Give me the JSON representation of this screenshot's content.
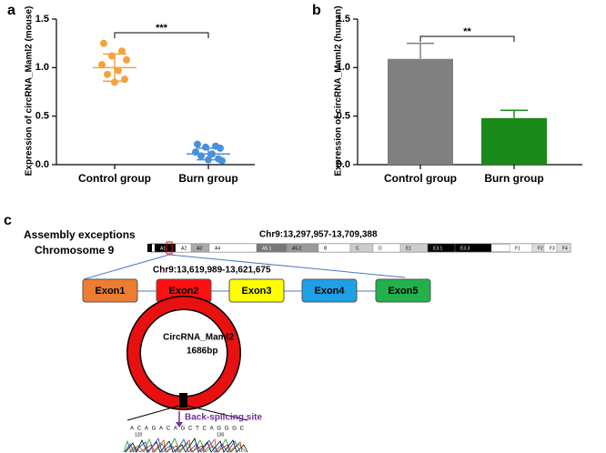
{
  "panel_labels": [
    "a",
    "b",
    "c"
  ],
  "chart_data": [
    {
      "type": "dot",
      "ylabel": "Expression of circRNA_Maml2 (mouse)",
      "categories": [
        "Control group",
        "Burn group"
      ],
      "colors": [
        "#f4a23c",
        "#4a90d9"
      ],
      "values": [
        [
          1.25,
          1.17,
          1.12,
          1.08,
          1.03,
          0.97,
          0.93,
          0.88,
          0.85
        ],
        [
          0.21,
          0.19,
          0.18,
          0.17,
          0.13,
          0.11,
          0.09,
          0.06,
          0.05,
          0.04
        ]
      ],
      "mean": [
        1.0,
        0.11
      ],
      "sd": [
        0.14,
        0.06
      ],
      "significance": "***",
      "ylim": [
        0,
        1.5
      ],
      "yticks": [
        {
          "value": 0,
          "label": "0.0"
        },
        0.5,
        {
          "value": 1,
          "label": "1.0"
        },
        1.5
      ]
    },
    {
      "type": "bar",
      "ylabel": "Expression of circRNA_Maml2 (human)",
      "categories": [
        "Control group",
        "Burn group"
      ],
      "colors": [
        "#808080",
        "#1a8a1a"
      ],
      "values": [
        1.09,
        0.48
      ],
      "errors": [
        0.16,
        0.08
      ],
      "significance": "**",
      "ylim": [
        0,
        1.5
      ],
      "yticks": [
        {
          "value": 0,
          "label": "0.0"
        },
        0.5,
        {
          "value": 1,
          "label": "1.0"
        },
        1.5
      ]
    }
  ],
  "diagram": {
    "assembly_label": "Assembly exceptions",
    "chromosome_label": "Chromosome 9",
    "region": "Chr9:13,297,957-13,709,388",
    "bands": [
      "A1",
      "A2",
      "A3",
      "A4",
      "A5.1",
      "A5.2",
      "B",
      "C",
      "D",
      "E1",
      "E3.1",
      "E3.3",
      "F1",
      "F2",
      "F3",
      "F4"
    ],
    "gene_region": "Chr9:13,619,989-13,621,675",
    "exons": [
      "Exon1",
      "Exon2",
      "Exon3",
      "Exon4",
      "Exon5"
    ],
    "circ_name": "CircRNA_Maml2",
    "circ_length": "1686bp",
    "junction_label": "Back-splicing site",
    "sequence": "ACAGACAGCTCAGGGC",
    "positions": [
      "120",
      "130"
    ]
  }
}
